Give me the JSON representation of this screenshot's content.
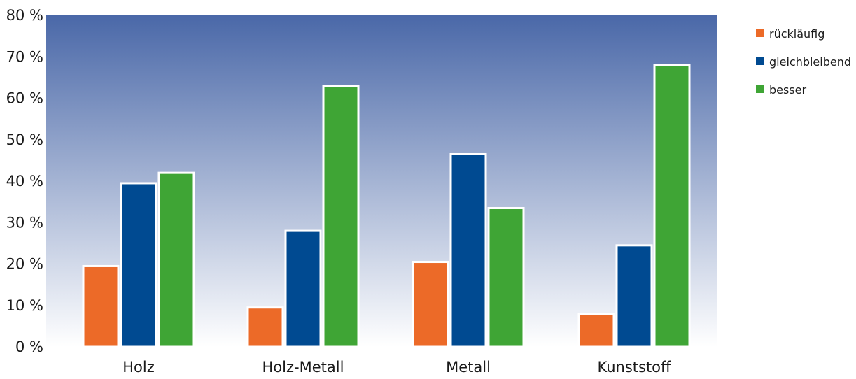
{
  "chart_data": {
    "type": "bar",
    "categories": [
      "Holz",
      "Holz-Metall",
      "Metall",
      "Kunststoff"
    ],
    "series": [
      {
        "name": "rückläufig",
        "color": "#EC6A28",
        "values": [
          19.5,
          9.5,
          20.5,
          8
        ]
      },
      {
        "name": "gleichbleibend",
        "color": "#004A91",
        "values": [
          39.5,
          28,
          46.5,
          24.5
        ]
      },
      {
        "name": "besser",
        "color": "#3FA535",
        "values": [
          42,
          63,
          33.5,
          68
        ]
      }
    ],
    "ylim": [
      0,
      80
    ],
    "yticks": [
      0,
      10,
      20,
      30,
      40,
      50,
      60,
      70,
      80
    ],
    "ytick_labels": [
      "0 %",
      "10 %",
      "20 %",
      "30 %",
      "40 %",
      "50 %",
      "60 %",
      "70 %",
      "80 %"
    ],
    "title": "",
    "xlabel": "",
    "ylabel": "",
    "legend_position": "top-right",
    "grid": false,
    "background_gradient": [
      "#4A68A8",
      "#FFFFFF"
    ]
  }
}
